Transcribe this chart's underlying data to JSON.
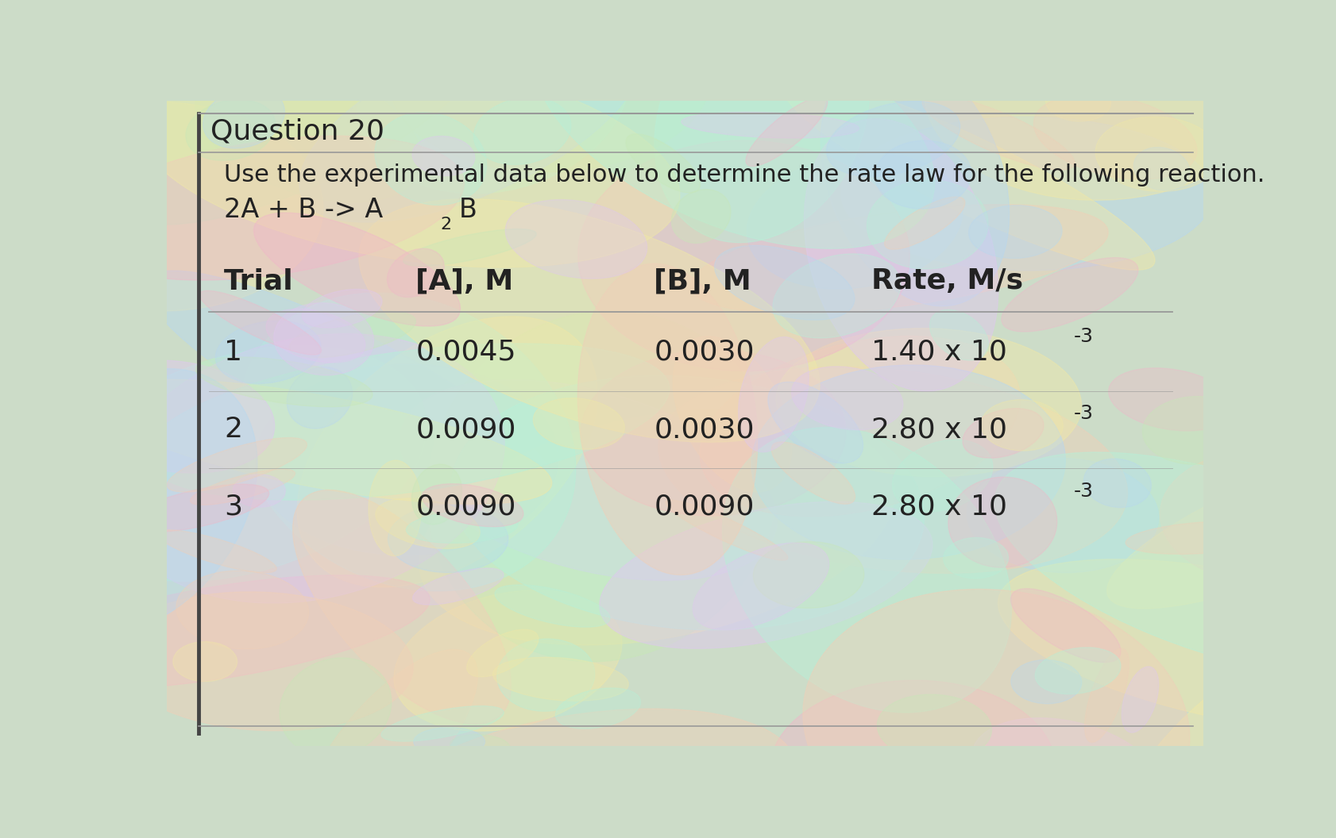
{
  "question_label": "Question 20",
  "instruction": "Use the experimental data below to determine the rate law for the following reaction.",
  "reaction_prefix": "2A + B -> A",
  "reaction_suffix": "B",
  "headers": [
    "Trial",
    "[A], M",
    "[B], M",
    "Rate, M/s"
  ],
  "rows": [
    [
      "1",
      "0.0045",
      "0.0030",
      "1.40 x 10",
      "-3"
    ],
    [
      "2",
      "0.0090",
      "0.0030",
      "2.80 x 10",
      "-3"
    ],
    [
      "3",
      "0.0090",
      "0.0090",
      "2.80 x 10",
      "-3"
    ]
  ],
  "text_color": "#222222",
  "font_size_question": 26,
  "font_size_instruction": 22,
  "font_size_reaction": 24,
  "font_size_header": 26,
  "font_size_data": 26,
  "font_size_super": 18,
  "font_size_sub": 16,
  "divider_color": "#999999",
  "left_border_color": "#444444",
  "pastel_colors": [
    "#f0b8c8",
    "#c8e8b8",
    "#e0c8f0",
    "#b8d8f0",
    "#f0e8a8",
    "#b8f0d8",
    "#f0d0b8"
  ],
  "bg_base": "#ccdcc8"
}
